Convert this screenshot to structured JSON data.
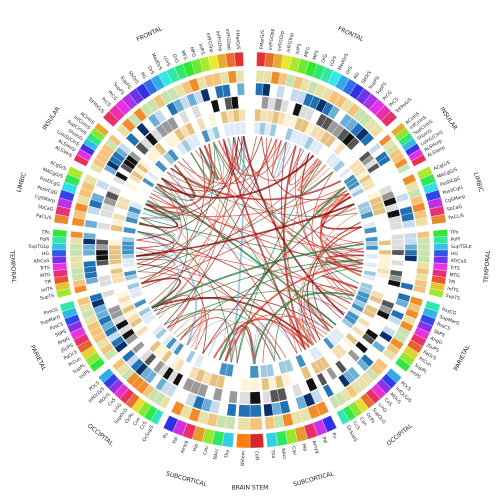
{
  "hemispheres": [
    {
      "lobes": [
        {
          "label": "FRONTAL",
          "regions": [
            "FMarG/S",
            "InfFGOpp",
            "InfFGOrp",
            "InfFGTrip",
            "InfFS",
            "MFG",
            "MFS",
            "OrG",
            "LOrS",
            "MedOrS",
            "OrS",
            "RG",
            "SbOrS",
            "SupFG",
            "SupFS",
            "PrCG",
            "PrCS",
            "TrFPoG/S"
          ]
        },
        {
          "label": "INSULAR",
          "regions": [
            "ACirInS",
            "InfCirInS",
            "SupCirInS",
            "ShoInG",
            "LoInG/CInS",
            "ALSHorp",
            "ALSVerp"
          ]
        },
        {
          "label": "LIMBIC",
          "regions": [
            "ACgG/S",
            "MACgG/S",
            "PosDCgG",
            "PosVCgG",
            "CgSMarp",
            "SbCaG",
            "PaCL/S"
          ]
        },
        {
          "label": "TEMPORAL",
          "regions": [
            "TPo",
            "PoPl",
            "SupTGLp",
            "HG",
            "ATrCoS",
            "TrTS",
            "MTG",
            "TPl",
            "InfTS",
            "SupTS"
          ]
        },
        {
          "label": "PARIETAL",
          "regions": [
            "PosCG",
            "SupMarG",
            "PosCS",
            "SbPS",
            "AngG",
            "JSuPS",
            "PaOcS",
            "PrCun",
            "SupPL",
            "IntPS"
          ]
        },
        {
          "label": "OCCIPITAL",
          "regions": [
            "POcS",
            "InfOcG/S",
            "MOcG",
            "CoS",
            "LinG",
            "SupOcG",
            "OcPo",
            "Cun",
            "CcS",
            "OcSupS"
          ]
        },
        {
          "label": "SUBCORTICAL",
          "regions": [
            "Pu",
            "Pal",
            "Amyg",
            "Hip",
            "Cau",
            "NAcc",
            "Tha"
          ]
        }
      ]
    },
    {
      "lobes": [
        {
          "label": "FRONTAL",
          "regions": [
            "FMarG/S",
            "InfFGOpp",
            "InfFGOrp",
            "InfFGTrip",
            "InfFS",
            "MFG",
            "MFS",
            "OrG",
            "LOrS",
            "MedOrS",
            "OrS",
            "RG",
            "SbOrS",
            "SupFG",
            "SupFS",
            "PrCG",
            "PrCS",
            "TrFPoG/S"
          ]
        },
        {
          "label": "INSULAR",
          "regions": [
            "ACirInS",
            "InfCirInS",
            "SupCirInS",
            "ShoInG",
            "LoInG/CInS",
            "ALSHorp",
            "ALSVerp"
          ]
        },
        {
          "label": "LIMBIC",
          "regions": [
            "ACgG/S",
            "MACgG/S",
            "PosDCgG",
            "PosVCgG",
            "CgSMarp",
            "SbCaG",
            "PaCL/S"
          ]
        },
        {
          "label": "TEMPORAL",
          "regions": [
            "TPo",
            "PoPl",
            "SupTGLp",
            "HG",
            "ATrCoS",
            "TrTS",
            "MTG",
            "TPl",
            "InfTS",
            "SupTS"
          ]
        },
        {
          "label": "PARIETAL",
          "regions": [
            "PosCG",
            "SupMarG",
            "PosCS",
            "SbPS",
            "AngG",
            "JSuPS",
            "PaOcS",
            "PrCun",
            "SupPL",
            "IntPS"
          ]
        },
        {
          "label": "OCCIPITAL",
          "regions": [
            "POcS",
            "InfOcG/S",
            "MOcG",
            "CoS",
            "LinG",
            "SupOcG",
            "OcPo",
            "Cun",
            "CcS",
            "OcSupS"
          ]
        },
        {
          "label": "SUBCORTICAL",
          "regions": [
            "Pu",
            "Pal",
            "Amyg",
            "Hip",
            "Cau",
            "NAcc",
            "Tha"
          ]
        }
      ]
    }
  ],
  "brainstem": {
    "label": "BRAIN STEM",
    "regions": [
      "CeB",
      "BStem"
    ]
  }
}
